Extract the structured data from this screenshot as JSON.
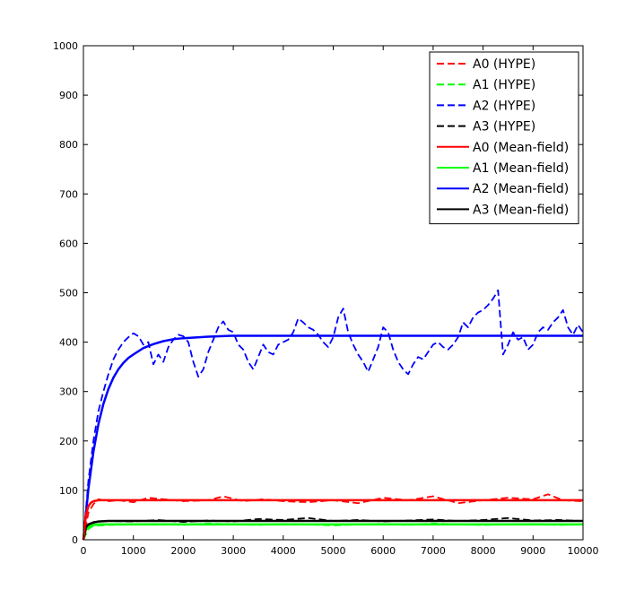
{
  "chart_data": {
    "type": "line",
    "title": "",
    "xlabel": "",
    "ylabel": "",
    "xlim": [
      0,
      10000
    ],
    "ylim": [
      0,
      1000
    ],
    "xticks": [
      "0",
      "1000",
      "2000",
      "3000",
      "4000",
      "5000",
      "6000",
      "7000",
      "8000",
      "9000",
      "10000"
    ],
    "yticks": [
      "0",
      "100",
      "200",
      "300",
      "400",
      "500",
      "600",
      "700",
      "800",
      "900",
      "1000"
    ],
    "grid": false,
    "legend_position": "top-right",
    "series": [
      {
        "name": "A0 (HYPE)",
        "color": "#ff0000",
        "style": "dashed",
        "x": [
          0,
          100,
          200,
          300,
          500,
          700,
          1000,
          1300,
          1600,
          2000,
          2500,
          2800,
          3200,
          3600,
          4000,
          4500,
          5000,
          5500,
          6000,
          6500,
          7000,
          7500,
          8000,
          8500,
          9000,
          9300,
          9600,
          10000
        ],
        "y": [
          0,
          55,
          72,
          82,
          78,
          80,
          76,
          85,
          82,
          78,
          80,
          88,
          78,
          82,
          78,
          76,
          80,
          74,
          85,
          80,
          88,
          74,
          80,
          85,
          82,
          92,
          80,
          78
        ]
      },
      {
        "name": "A1 (HYPE)",
        "color": "#00ff00",
        "style": "dashed",
        "x": [
          0,
          100,
          200,
          500,
          1000,
          1500,
          2000,
          2500,
          3000,
          3500,
          4000,
          4500,
          5000,
          5500,
          6000,
          6500,
          7000,
          7500,
          8000,
          8500,
          9000,
          9500,
          10000
        ],
        "y": [
          0,
          22,
          28,
          30,
          31,
          32,
          30,
          33,
          31,
          30,
          32,
          31,
          29,
          31,
          32,
          30,
          33,
          31,
          30,
          31,
          32,
          30,
          31
        ]
      },
      {
        "name": "A2 (HYPE)",
        "color": "#0000ff",
        "style": "dashed",
        "x": [
          0,
          100,
          200,
          300,
          400,
          500,
          600,
          700,
          800,
          900,
          1000,
          1100,
          1200,
          1300,
          1400,
          1500,
          1600,
          1700,
          1800,
          1900,
          2000,
          2100,
          2200,
          2300,
          2400,
          2500,
          2600,
          2700,
          2800,
          2900,
          3000,
          3100,
          3200,
          3300,
          3400,
          3500,
          3600,
          3700,
          3800,
          3900,
          4000,
          4100,
          4200,
          4300,
          4400,
          4500,
          4600,
          4700,
          4800,
          4900,
          5000,
          5100,
          5200,
          5300,
          5400,
          5500,
          5600,
          5700,
          5800,
          5900,
          6000,
          6100,
          6200,
          6300,
          6400,
          6500,
          6600,
          6700,
          6800,
          6900,
          7000,
          7100,
          7200,
          7300,
          7400,
          7500,
          7600,
          7700,
          7800,
          7900,
          8000,
          8100,
          8200,
          8300,
          8400,
          8500,
          8600,
          8700,
          8800,
          8900,
          9000,
          9100,
          9200,
          9300,
          9400,
          9500,
          9600,
          9700,
          9800,
          9900,
          10000
        ],
        "y": [
          0,
          120,
          200,
          260,
          300,
          335,
          365,
          385,
          400,
          410,
          418,
          412,
          395,
          400,
          355,
          375,
          360,
          390,
          405,
          415,
          412,
          400,
          360,
          330,
          345,
          380,
          405,
          430,
          442,
          425,
          420,
          395,
          385,
          360,
          345,
          370,
          395,
          380,
          375,
          395,
          400,
          405,
          420,
          448,
          440,
          430,
          425,
          415,
          400,
          390,
          410,
          450,
          468,
          420,
          395,
          375,
          360,
          340,
          365,
          390,
          430,
          420,
          385,
          360,
          345,
          335,
          355,
          370,
          365,
          380,
          395,
          400,
          390,
          385,
          395,
          410,
          440,
          430,
          450,
          460,
          465,
          475,
          488,
          505,
          375,
          395,
          420,
          405,
          410,
          385,
          395,
          420,
          430,
          425,
          440,
          450,
          465,
          430,
          415,
          435,
          420
        ]
      },
      {
        "name": "A3 (HYPE)",
        "color": "#000000",
        "style": "dashed",
        "x": [
          0,
          100,
          200,
          500,
          1000,
          1500,
          2000,
          2500,
          3000,
          3500,
          4000,
          4500,
          5000,
          5500,
          6000,
          6500,
          7000,
          7500,
          8000,
          8500,
          9000,
          9500,
          10000
        ],
        "y": [
          0,
          30,
          36,
          38,
          37,
          40,
          36,
          39,
          37,
          42,
          40,
          44,
          38,
          40,
          37,
          39,
          41,
          38,
          40,
          44,
          39,
          40,
          38
        ]
      },
      {
        "name": "A0 (Mean-field)",
        "color": "#ff0000",
        "style": "solid",
        "x": [
          0,
          50,
          100,
          150,
          200,
          300,
          500,
          1000,
          10000
        ],
        "y": [
          0,
          50,
          68,
          75,
          78,
          80,
          80,
          80,
          80
        ]
      },
      {
        "name": "A1 (Mean-field)",
        "color": "#00ff00",
        "style": "solid",
        "x": [
          0,
          50,
          100,
          200,
          300,
          500,
          1000,
          10000
        ],
        "y": [
          0,
          20,
          26,
          30,
          31,
          31,
          31,
          31
        ]
      },
      {
        "name": "A2 (Mean-field)",
        "color": "#0000ff",
        "style": "solid",
        "x": [
          0,
          100,
          200,
          300,
          400,
          500,
          600,
          700,
          800,
          900,
          1000,
          1200,
          1400,
          1600,
          1800,
          2000,
          2500,
          3000,
          10000
        ],
        "y": [
          0,
          103,
          178,
          234,
          275,
          305,
          328,
          345,
          358,
          368,
          375,
          388,
          396,
          402,
          406,
          408,
          411,
          413,
          413
        ]
      },
      {
        "name": "A3 (Mean-field)",
        "color": "#000000",
        "style": "solid",
        "x": [
          0,
          50,
          100,
          200,
          300,
          500,
          1000,
          10000
        ],
        "y": [
          0,
          25,
          31,
          35,
          37,
          38,
          38,
          38
        ]
      }
    ]
  }
}
